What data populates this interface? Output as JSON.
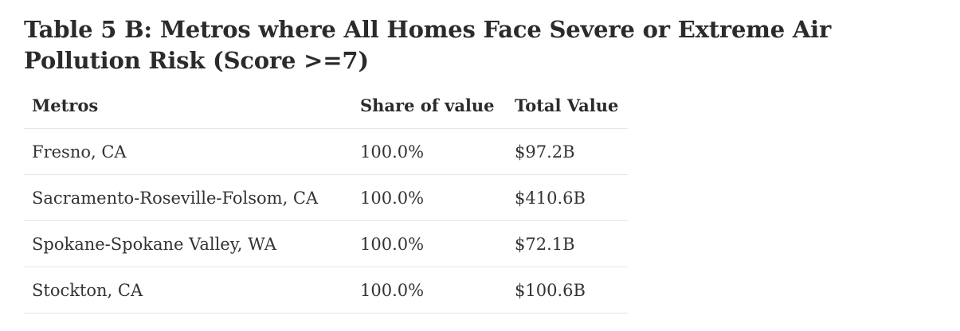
{
  "title": "Table 5 B: Metros where All Homes Face Severe or Extreme Air Pollution Risk (Score >=7)",
  "table": {
    "headers": [
      "Metros",
      "Share of value",
      "Total Value"
    ],
    "rows": [
      [
        "Fresno, CA",
        "100.0%",
        "$97.2B"
      ],
      [
        "Sacramento-Roseville-Folsom, CA",
        "100.0%",
        "$410.6B"
      ],
      [
        "Spokane-Spokane Valley, WA",
        "100.0%",
        "$72.1B"
      ],
      [
        "Stockton, CA",
        "100.0%",
        "$100.6B"
      ]
    ]
  }
}
